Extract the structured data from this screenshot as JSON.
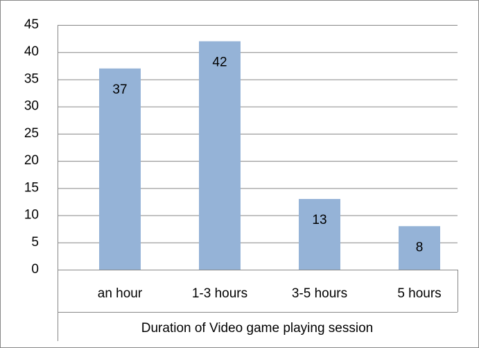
{
  "chart_data": {
    "type": "bar",
    "categories": [
      "an hour",
      "1-3 hours",
      "3-5 hours",
      "5 hours"
    ],
    "values": [
      37,
      42,
      13,
      8
    ],
    "color": "#95b3d7",
    "x_label": "Duration of Video game playing session",
    "ylim": [
      0,
      45
    ],
    "yticks": [
      0,
      5,
      10,
      15,
      20,
      25,
      30,
      35,
      40,
      45
    ],
    "grid": true
  }
}
